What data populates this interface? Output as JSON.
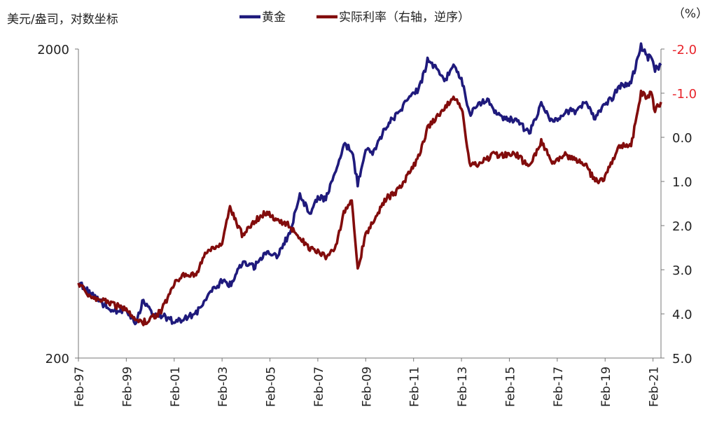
{
  "chart_data": {
    "type": "line",
    "left_axis_title": "美元/盎司，对数坐标",
    "right_axis_unit": "（%）",
    "left_axis": {
      "scale": "log",
      "range": [
        200,
        2000
      ],
      "tick_labels": [
        "2000",
        "200"
      ]
    },
    "right_axis": {
      "inverted": true,
      "range": [
        -2.0,
        5.0
      ],
      "tick_labels": [
        "-2.0",
        "-1.0",
        "0.0",
        "1.0",
        "2.0",
        "3.0",
        "4.0",
        "5.0"
      ],
      "tick_values": [
        -2.0,
        -1.0,
        0.0,
        1.0,
        2.0,
        3.0,
        4.0,
        5.0
      ]
    },
    "x_axis": {
      "range": [
        "1997-02",
        "2021-06"
      ],
      "tick_labels": [
        "Feb-97",
        "Feb-99",
        "Feb-01",
        "Feb-03",
        "Feb-05",
        "Feb-07",
        "Feb-09",
        "Feb-11",
        "Feb-13",
        "Feb-15",
        "Feb-17",
        "Feb-19",
        "Feb-21"
      ],
      "tick_dates": [
        "1997-02",
        "1999-02",
        "2001-02",
        "2003-02",
        "2005-02",
        "2007-02",
        "2009-02",
        "2011-02",
        "2013-02",
        "2015-02",
        "2017-02",
        "2019-02",
        "2021-02"
      ]
    },
    "legend_placement": "top-center",
    "grid": false,
    "series": [
      {
        "name": "黄金",
        "axis": "left",
        "color": "#1f1a7c",
        "points": [
          [
            "1997-02",
            350
          ],
          [
            "1997-08",
            325
          ],
          [
            "1998-03",
            297
          ],
          [
            "1998-08",
            285
          ],
          [
            "1999-02",
            287
          ],
          [
            "1999-07",
            255
          ],
          [
            "1999-10",
            305
          ],
          [
            "2000-03",
            280
          ],
          [
            "2000-08",
            275
          ],
          [
            "2001-02",
            262
          ],
          [
            "2001-06",
            268
          ],
          [
            "2002-01",
            278
          ],
          [
            "2002-06",
            315
          ],
          [
            "2003-02",
            355
          ],
          [
            "2003-06",
            345
          ],
          [
            "2003-12",
            405
          ],
          [
            "2004-06",
            395
          ],
          [
            "2004-12",
            440
          ],
          [
            "2005-06",
            430
          ],
          [
            "2005-12",
            510
          ],
          [
            "2006-05",
            680
          ],
          [
            "2006-10",
            585
          ],
          [
            "2007-02",
            665
          ],
          [
            "2007-06",
            655
          ],
          [
            "2007-11",
            800
          ],
          [
            "2008-03",
            980
          ],
          [
            "2008-07",
            940
          ],
          [
            "2008-10",
            730
          ],
          [
            "2009-02",
            940
          ],
          [
            "2009-06",
            930
          ],
          [
            "2009-12",
            1120
          ],
          [
            "2010-06",
            1240
          ],
          [
            "2010-12",
            1390
          ],
          [
            "2011-05",
            1500
          ],
          [
            "2011-09",
            1830
          ],
          [
            "2012-02",
            1720
          ],
          [
            "2012-06",
            1590
          ],
          [
            "2012-10",
            1760
          ],
          [
            "2013-02",
            1610
          ],
          [
            "2013-06",
            1230
          ],
          [
            "2013-10",
            1320
          ],
          [
            "2014-03",
            1380
          ],
          [
            "2014-06",
            1280
          ],
          [
            "2014-12",
            1190
          ],
          [
            "2015-06",
            1175
          ],
          [
            "2015-12",
            1060
          ],
          [
            "2016-06",
            1340
          ],
          [
            "2016-12",
            1150
          ],
          [
            "2017-06",
            1260
          ],
          [
            "2017-12",
            1260
          ],
          [
            "2018-04",
            1340
          ],
          [
            "2018-09",
            1190
          ],
          [
            "2019-02",
            1320
          ],
          [
            "2019-06",
            1400
          ],
          [
            "2019-09",
            1510
          ],
          [
            "2020-03",
            1560
          ],
          [
            "2020-08",
            2050
          ],
          [
            "2020-11",
            1880
          ],
          [
            "2021-01",
            1880
          ],
          [
            "2021-03",
            1720
          ],
          [
            "2021-06",
            1770
          ]
        ]
      },
      {
        "name": "实际利率（右轴，逆序）",
        "axis": "right",
        "color": "#820c0c",
        "points": [
          [
            "1997-02",
            3.3
          ],
          [
            "1997-08",
            3.6
          ],
          [
            "1998-03",
            3.7
          ],
          [
            "1998-08",
            3.8
          ],
          [
            "1999-02",
            3.9
          ],
          [
            "1999-07",
            4.1
          ],
          [
            "1999-10",
            4.2
          ],
          [
            "2000-03",
            4.1
          ],
          [
            "2000-08",
            3.9
          ],
          [
            "2001-02",
            3.3
          ],
          [
            "2001-06",
            3.1
          ],
          [
            "2002-01",
            3.1
          ],
          [
            "2002-06",
            2.6
          ],
          [
            "2003-02",
            2.4
          ],
          [
            "2003-06",
            1.6
          ],
          [
            "2003-12",
            2.2
          ],
          [
            "2004-06",
            1.9
          ],
          [
            "2004-12",
            1.7
          ],
          [
            "2005-06",
            1.9
          ],
          [
            "2005-12",
            2.0
          ],
          [
            "2006-05",
            2.3
          ],
          [
            "2006-10",
            2.5
          ],
          [
            "2007-02",
            2.6
          ],
          [
            "2007-06",
            2.7
          ],
          [
            "2007-11",
            2.5
          ],
          [
            "2008-03",
            1.7
          ],
          [
            "2008-07",
            1.4
          ],
          [
            "2008-10",
            3.0
          ],
          [
            "2009-02",
            2.2
          ],
          [
            "2009-06",
            1.9
          ],
          [
            "2009-12",
            1.4
          ],
          [
            "2010-06",
            1.2
          ],
          [
            "2010-12",
            0.8
          ],
          [
            "2011-05",
            0.4
          ],
          [
            "2011-09",
            -0.2
          ],
          [
            "2012-02",
            -0.5
          ],
          [
            "2012-06",
            -0.7
          ],
          [
            "2012-10",
            -0.9
          ],
          [
            "2013-02",
            -0.7
          ],
          [
            "2013-06",
            0.6
          ],
          [
            "2013-10",
            0.6
          ],
          [
            "2014-03",
            0.5
          ],
          [
            "2014-06",
            0.4
          ],
          [
            "2014-12",
            0.4
          ],
          [
            "2015-06",
            0.4
          ],
          [
            "2015-12",
            0.7
          ],
          [
            "2016-06",
            0.1
          ],
          [
            "2016-12",
            0.6
          ],
          [
            "2017-06",
            0.4
          ],
          [
            "2017-12",
            0.5
          ],
          [
            "2018-04",
            0.6
          ],
          [
            "2018-09",
            1.0
          ],
          [
            "2019-02",
            0.9
          ],
          [
            "2019-06",
            0.5
          ],
          [
            "2019-09",
            0.2
          ],
          [
            "2020-03",
            0.2
          ],
          [
            "2020-08",
            -1.0
          ],
          [
            "2020-11",
            -0.9
          ],
          [
            "2021-01",
            -1.0
          ],
          [
            "2021-03",
            -0.6
          ],
          [
            "2021-06",
            -0.8
          ]
        ]
      }
    ]
  }
}
